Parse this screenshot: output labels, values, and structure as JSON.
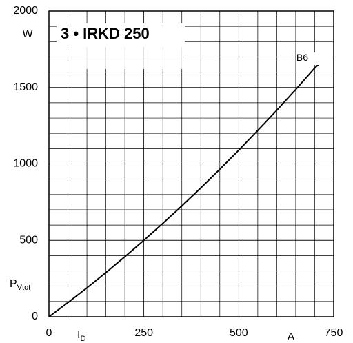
{
  "chart_data": {
    "type": "line",
    "x": [
      0,
      50,
      100,
      150,
      200,
      250,
      300,
      350,
      400,
      450,
      500,
      550,
      600,
      650,
      700,
      730
    ],
    "series": [
      {
        "name": "B6",
        "color": "#000000",
        "values": [
          0,
          93,
          189,
          289,
          393,
          500,
          611,
          725,
          843,
          965,
          1090,
          1219,
          1351,
          1487,
          1627,
          1700
        ]
      }
    ],
    "xlim": [
      0,
      750
    ],
    "ylim": [
      0,
      2000
    ],
    "xticks": [
      0,
      250,
      500,
      750
    ],
    "yticks": [
      0,
      500,
      1000,
      1500,
      2000
    ],
    "x_grid": [
      50,
      100,
      150,
      200,
      250,
      300,
      350,
      400,
      450,
      500,
      550,
      600,
      650,
      700
    ],
    "y_grid": [
      100,
      200,
      300,
      400,
      500,
      600,
      700,
      800,
      900,
      1000,
      1100,
      1200,
      1300,
      1400,
      1500,
      1600,
      1700,
      1800,
      1900
    ],
    "grid": true,
    "annotation": "3 • IRKD 250",
    "y_label": "P",
    "y_label_sub": "Vtot",
    "y_unit": "W",
    "x_label": "I",
    "x_label_sub": "D",
    "x_unit": "A"
  }
}
